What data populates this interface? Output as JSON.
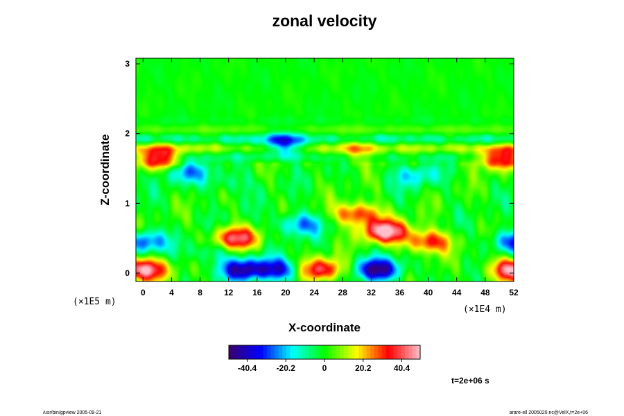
{
  "chart_data": {
    "type": "heatmap",
    "title": "zonal velocity",
    "xlabel": "X-coordinate",
    "ylabel": "Z-coordinate",
    "x_scale_note": "(×1E4 m)",
    "y_scale_note": "(×1E5 m)",
    "xlim": [
      -1,
      52
    ],
    "ylim": [
      -0.12,
      3.08
    ],
    "x_ticks": [
      "0",
      "4",
      "8",
      "12",
      "16",
      "20",
      "24",
      "28",
      "32",
      "36",
      "40",
      "44",
      "48",
      "52"
    ],
    "y_ticks": [
      "0",
      "1",
      "2",
      "3"
    ],
    "colorbar": {
      "range": [
        -50,
        50
      ],
      "ticks": [
        "-40.4",
        "-20.2",
        "0",
        "20.2",
        "40.4"
      ],
      "colors": [
        "#3a006a",
        "#0000ff",
        "#00ffff",
        "#00ff00",
        "#ffff00",
        "#ff0000",
        "#ffc0cb"
      ]
    },
    "time_label": "t=2e+06 s",
    "features": [
      {
        "x": 0,
        "z": 0.05,
        "u": 50
      },
      {
        "x": 52,
        "z": 0.05,
        "u": 50
      },
      {
        "x": 0,
        "z": 0.45,
        "u": -30
      },
      {
        "x": 52,
        "z": 0.45,
        "u": -30
      },
      {
        "x": 13,
        "z": 0.5,
        "u": 40
      },
      {
        "x": 14,
        "z": 0.05,
        "u": -40
      },
      {
        "x": 19,
        "z": 0.05,
        "u": -35
      },
      {
        "x": 25,
        "z": 0.05,
        "u": 40
      },
      {
        "x": 33,
        "z": 0.05,
        "u": -45
      },
      {
        "x": 34,
        "z": 0.6,
        "u": 50
      },
      {
        "x": 30,
        "z": 0.85,
        "u": 35
      },
      {
        "x": 40,
        "z": 0.45,
        "u": 35
      },
      {
        "x": 22,
        "z": 0.7,
        "u": -25
      },
      {
        "x": 9,
        "z": 0.3,
        "u": -12
      },
      {
        "x": 6,
        "z": 1.45,
        "u": -22
      },
      {
        "x": 38,
        "z": 1.4,
        "u": -18
      },
      {
        "x": 12,
        "z": 1.3,
        "u": -10
      },
      {
        "x": 20,
        "z": 1.85,
        "u": -30
      },
      {
        "x": 30,
        "z": 1.75,
        "u": 18
      },
      {
        "x": 2,
        "z": 1.65,
        "u": 40
      },
      {
        "x": 50,
        "z": 1.65,
        "u": 40
      }
    ]
  },
  "footer": {
    "left": "/usr/bin/gpview 2005-09-21",
    "right": "arare-ell 2005020.nc@VelX,t=2e+06"
  }
}
